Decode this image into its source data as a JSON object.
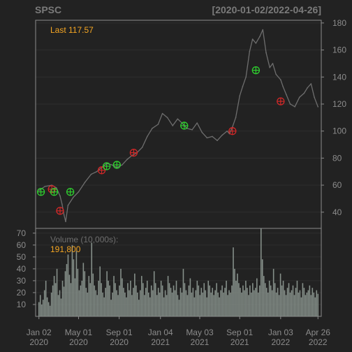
{
  "header": {
    "symbol": "SPSC",
    "date_range": "[2020-01-02/2022-04-26]"
  },
  "price_panel": {
    "last_label": "Last 117.57"
  },
  "volume_panel": {
    "label": "Volume (10,000s):",
    "last_value": "191,800"
  },
  "colors": {
    "background": "#222222",
    "frame": "#8c8c8c",
    "axis_text": "#8c8c8c",
    "title_text": "#7a7a7a",
    "grid": "#2e2e2e",
    "price_line": "#6e6e6e",
    "volume_bar": "#86908a",
    "highlight_text": "#f5a623",
    "buy_marker": "#2fd02f",
    "sell_marker": "#d22828"
  },
  "chart_data": [
    {
      "type": "line",
      "panel": "price",
      "series": [
        {
          "x": [
            "2020-01-02",
            "2020-01-20",
            "2020-02-10",
            "2020-02-24",
            "2020-03-06",
            "2020-03-12",
            "2020-03-18",
            "2020-03-23",
            "2020-03-30",
            "2020-04-15",
            "2020-05-01",
            "2020-05-20",
            "2020-06-08",
            "2020-06-25",
            "2020-07-10",
            "2020-07-25",
            "2020-08-10",
            "2020-08-25",
            "2020-09-10",
            "2020-09-25",
            "2020-10-10",
            "2020-10-25",
            "2020-11-10",
            "2020-11-25",
            "2020-12-10",
            "2020-12-28",
            "2021-01-10",
            "2021-01-25",
            "2021-02-10",
            "2021-02-25",
            "2021-03-10",
            "2021-03-25",
            "2021-04-10",
            "2021-04-25",
            "2021-05-10",
            "2021-05-25",
            "2021-06-10",
            "2021-06-25",
            "2021-07-10",
            "2021-07-25",
            "2021-08-01",
            "2021-08-10",
            "2021-08-20",
            "2021-09-01",
            "2021-09-10",
            "2021-09-20",
            "2021-10-01",
            "2021-10-10",
            "2021-10-20",
            "2021-11-01",
            "2021-11-10",
            "2021-11-20",
            "2021-12-01",
            "2021-12-10",
            "2021-12-20",
            "2022-01-03",
            "2022-01-10",
            "2022-01-20",
            "2022-02-01",
            "2022-02-15",
            "2022-03-01",
            "2022-03-15",
            "2022-03-25",
            "2022-04-05",
            "2022-04-15",
            "2022-04-26"
          ],
          "y": [
            56,
            59,
            60,
            58,
            52,
            46,
            38,
            33,
            45,
            51,
            55,
            62,
            68,
            70,
            73,
            76,
            75,
            73,
            75,
            79,
            82,
            84,
            88,
            96,
            102,
            105,
            113,
            110,
            104,
            109,
            106,
            102,
            101,
            106,
            99,
            95,
            96,
            93,
            97,
            100,
            98,
            103,
            110,
            126,
            133,
            140,
            159,
            168,
            165,
            170,
            175,
            158,
            147,
            150,
            142,
            138,
            133,
            127,
            120,
            118,
            125,
            128,
            132,
            135,
            125,
            118
          ]
        }
      ],
      "buy_signals": [
        {
          "x": "2020-01-08",
          "y": 55
        },
        {
          "x": "2020-02-17",
          "y": 55
        },
        {
          "x": "2020-04-06",
          "y": 55
        },
        {
          "x": "2020-07-25",
          "y": 74
        },
        {
          "x": "2020-08-25",
          "y": 75
        },
        {
          "x": "2021-03-17",
          "y": 104
        },
        {
          "x": "2021-10-20",
          "y": 145
        }
      ],
      "sell_signals": [
        {
          "x": "2020-02-10",
          "y": 57
        },
        {
          "x": "2020-03-06",
          "y": 41
        },
        {
          "x": "2020-07-10",
          "y": 71
        },
        {
          "x": "2020-10-15",
          "y": 84
        },
        {
          "x": "2021-08-10",
          "y": 100
        },
        {
          "x": "2022-01-03",
          "y": 122
        }
      ],
      "y_ticks": [
        40,
        60,
        80,
        100,
        120,
        140,
        160,
        180
      ],
      "ylim": [
        28,
        182
      ],
      "xlim": [
        "2019-12-23",
        "2022-05-06"
      ],
      "grid": true
    },
    {
      "type": "bar",
      "panel": "volume",
      "unit": "10,000s",
      "x_start": "2020-01-02",
      "x_end": "2022-04-26",
      "values": [
        12,
        18,
        10,
        14,
        22,
        30,
        16,
        12,
        9,
        20,
        26,
        34,
        28,
        40,
        18,
        22,
        15,
        30,
        25,
        38,
        44,
        52,
        35,
        28,
        60,
        48,
        32,
        55,
        40,
        22,
        26,
        30,
        45,
        38,
        24,
        20,
        34,
        28,
        62,
        36,
        26,
        22,
        18,
        30,
        42,
        28,
        20,
        16,
        24,
        38,
        30,
        26,
        14,
        20,
        34,
        28,
        22,
        18,
        26,
        40,
        32,
        24,
        20,
        16,
        28,
        22,
        30,
        18,
        24,
        36,
        26,
        20,
        14,
        22,
        34,
        28,
        18,
        24,
        30,
        20,
        16,
        26,
        22,
        38,
        28,
        18,
        24,
        20,
        30,
        26,
        16,
        22,
        18,
        34,
        28,
        24,
        20,
        26,
        22,
        30,
        18,
        14,
        24,
        20,
        40,
        28,
        22,
        18,
        26,
        32,
        20,
        24,
        16,
        22,
        30,
        26,
        18,
        24,
        20,
        28,
        22,
        16,
        30,
        26,
        20,
        24,
        18,
        22,
        28,
        20,
        16,
        22,
        26,
        20,
        24,
        30,
        18,
        22,
        20,
        26,
        58,
        40,
        30,
        36,
        28,
        24,
        20,
        26,
        22,
        30,
        24,
        18,
        26,
        20,
        28,
        22,
        24,
        32,
        20,
        26,
        74,
        48,
        34,
        28,
        24,
        20,
        30,
        26,
        22,
        40,
        28,
        20,
        24,
        18,
        36,
        26,
        30,
        22,
        18,
        24,
        28,
        20,
        22,
        26,
        18,
        24,
        30,
        20,
        22,
        16,
        28,
        24,
        18,
        20,
        22,
        26,
        18,
        24,
        20,
        16,
        22,
        19
      ],
      "y_ticks": [
        10,
        20,
        30,
        40,
        50,
        60,
        70
      ],
      "ylim": [
        0,
        74
      ]
    }
  ],
  "x_axis": {
    "ticks": [
      {
        "date": "2020-01-02",
        "line1": "Jan 02",
        "line2": "2020"
      },
      {
        "date": "2020-05-01",
        "line1": "May 01",
        "line2": "2020"
      },
      {
        "date": "2020-09-01",
        "line1": "Sep 01",
        "line2": "2020"
      },
      {
        "date": "2021-01-04",
        "line1": "Jan 04",
        "line2": "2021"
      },
      {
        "date": "2021-05-03",
        "line1": "May 03",
        "line2": "2021"
      },
      {
        "date": "2021-09-01",
        "line1": "Sep 01",
        "line2": "2021"
      },
      {
        "date": "2022-01-03",
        "line1": "Jan 03",
        "line2": "2022"
      },
      {
        "date": "2022-04-26",
        "line1": "Apr 26",
        "line2": "2022"
      }
    ]
  }
}
